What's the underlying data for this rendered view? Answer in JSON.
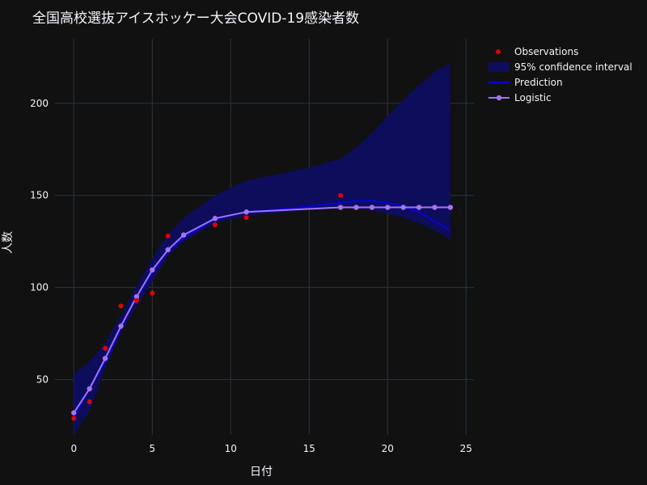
{
  "chart_data": {
    "type": "line",
    "title": "全国高校選抜アイスホッケー大会COVID-19感染者数",
    "xlabel": "日付",
    "ylabel": "人数",
    "xlim": [
      -1.2,
      25.5
    ],
    "ylim": [
      20,
      235
    ],
    "x_ticks": [
      0,
      5,
      10,
      15,
      20,
      25
    ],
    "y_ticks": [
      50,
      100,
      150,
      200
    ],
    "grid": true,
    "legend_position": "top-right",
    "colors": {
      "background": "#111111",
      "grid": "#283442",
      "observations": "#e00000",
      "ci_fill": "#0d0d5c",
      "prediction": "#0a00d6",
      "logistic": "#a473f2"
    },
    "series": [
      {
        "name": "Observations",
        "kind": "scatter",
        "x": [
          0,
          1,
          2,
          3,
          4,
          5,
          6,
          9,
          11,
          17
        ],
        "y": [
          29,
          38,
          67,
          90,
          93,
          97,
          128,
          134,
          138,
          150
        ]
      },
      {
        "name": "95% confidence interval",
        "kind": "band",
        "x": [
          0,
          1,
          2,
          3,
          4,
          5,
          6,
          7,
          9,
          11,
          15,
          17,
          18,
          19,
          20,
          21,
          22,
          23,
          24
        ],
        "upper": [
          53,
          60,
          70,
          85,
          101,
          116,
          129,
          138,
          150,
          158,
          165,
          170,
          176,
          184,
          193,
          202,
          210,
          217,
          222
        ],
        "lower": [
          20,
          33,
          56,
          75,
          90,
          103,
          117,
          125,
          135,
          139,
          142,
          143,
          143,
          142,
          140,
          138,
          135,
          131,
          126
        ]
      },
      {
        "name": "Prediction",
        "kind": "line",
        "x": [
          0,
          1,
          2,
          3,
          4,
          5,
          6,
          7,
          9,
          11,
          15,
          17,
          18,
          19,
          20,
          21,
          22,
          23,
          24
        ],
        "y": [
          30,
          45,
          60,
          78,
          95,
          108,
          120,
          127,
          137,
          141,
          144,
          146,
          147,
          147,
          146,
          144,
          141,
          136,
          131
        ]
      },
      {
        "name": "Logistic",
        "kind": "line+markers",
        "x": [
          0,
          1,
          2,
          3,
          4,
          5,
          6,
          7,
          9,
          11,
          17,
          18,
          19,
          20,
          21,
          22,
          23,
          24
        ],
        "y": [
          32,
          45,
          61.5,
          79,
          95,
          109.5,
          120.5,
          128.5,
          137.5,
          141,
          143.5,
          143.5,
          143.5,
          143.5,
          143.5,
          143.5,
          143.5,
          143.5
        ]
      }
    ]
  }
}
